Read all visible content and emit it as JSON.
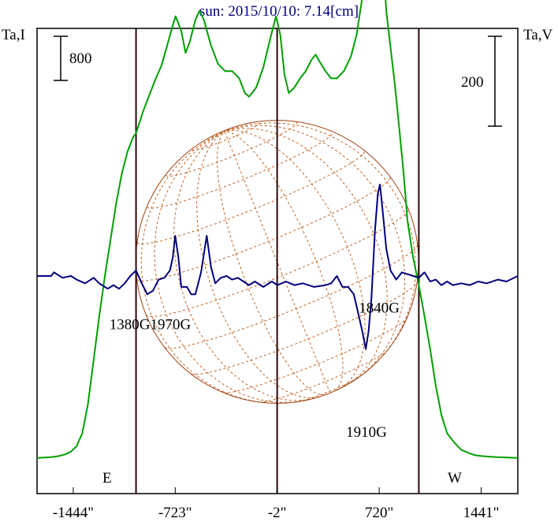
{
  "chart_data": {
    "type": "line",
    "title": "sun: 2015/10/10: 7.14[cm]",
    "y_left_label": "Ta,I",
    "y_right_label": "Ta,V",
    "left_scale_bar": "800",
    "right_scale_bar": "200",
    "limb_east_label": "E",
    "limb_west_label": "W",
    "xlim": [
      -1700,
      1700
    ],
    "x_tick_values": [
      -1444,
      -723,
      -2,
      720,
      1441
    ],
    "x_tick_labels": [
      "-1444\"",
      "-723\"",
      "-2\"",
      "720\"",
      "1441\""
    ],
    "vertical_lines": [
      -1000,
      -2,
      1000
    ],
    "grid": false,
    "solar_disk": {
      "center_arcsec": -2,
      "radius_arcsec": 1000
    },
    "annotations": [
      {
        "text": "1380G1970G",
        "x": -900,
        "y": 0.29
      },
      {
        "text": "1840G",
        "x": 720,
        "y": 0.2
      },
      {
        "text": "1910G",
        "x": 630,
        "y": 0.88
      }
    ],
    "series": [
      {
        "color": "#00a000",
        "points": [
          [
            -1700,
            0.995
          ],
          [
            -1600,
            0.99
          ],
          [
            -1550,
            0.985
          ],
          [
            -1500,
            0.975
          ],
          [
            -1460,
            0.96
          ],
          [
            -1420,
            0.93
          ],
          [
            -1380,
            0.86
          ],
          [
            -1340,
            0.7
          ],
          [
            -1300,
            0.46
          ],
          [
            -1260,
            0.22
          ],
          [
            -1220,
            0.0
          ],
          [
            -1180,
            -0.2
          ],
          [
            -1140,
            -0.4
          ],
          [
            -1100,
            -0.56
          ],
          [
            -1060,
            -0.68
          ],
          [
            -1020,
            -0.76
          ],
          [
            -1000,
            -0.78
          ],
          [
            -950,
            -0.9
          ],
          [
            -900,
            -1.0
          ],
          [
            -860,
            -1.08
          ],
          [
            -820,
            -1.15
          ],
          [
            -780,
            -1.26
          ],
          [
            -740,
            -1.37
          ],
          [
            -720,
            -1.42
          ],
          [
            -680,
            -1.34
          ],
          [
            -650,
            -1.22
          ],
          [
            -620,
            -1.28
          ],
          [
            -580,
            -1.4
          ],
          [
            -550,
            -1.45
          ],
          [
            -520,
            -1.4
          ],
          [
            -470,
            -1.26
          ],
          [
            -420,
            -1.16
          ],
          [
            -370,
            -1.12
          ],
          [
            -320,
            -1.12
          ],
          [
            -270,
            -1.08
          ],
          [
            -230,
            -1.0
          ],
          [
            -200,
            -0.98
          ],
          [
            -150,
            -1.03
          ],
          [
            -100,
            -1.14
          ],
          [
            -50,
            -1.3
          ],
          [
            -10,
            -1.42
          ],
          [
            20,
            -1.32
          ],
          [
            50,
            -1.1
          ],
          [
            80,
            -1.0
          ],
          [
            120,
            -1.03
          ],
          [
            160,
            -1.08
          ],
          [
            200,
            -1.12
          ],
          [
            240,
            -1.18
          ],
          [
            270,
            -1.21
          ],
          [
            300,
            -1.17
          ],
          [
            340,
            -1.12
          ],
          [
            380,
            -1.08
          ],
          [
            420,
            -1.08
          ],
          [
            470,
            -1.12
          ],
          [
            520,
            -1.2
          ],
          [
            560,
            -1.32
          ],
          [
            600,
            -1.52
          ],
          [
            640,
            -1.72
          ],
          [
            680,
            -1.88
          ],
          [
            700,
            -1.98
          ],
          [
            720,
            -2.02
          ],
          [
            745,
            -1.75
          ],
          [
            770,
            -1.45
          ],
          [
            800,
            -1.25
          ],
          [
            830,
            -1.05
          ],
          [
            860,
            -0.82
          ],
          [
            890,
            -0.58
          ],
          [
            920,
            -0.3
          ],
          [
            960,
            -0.1
          ],
          [
            1000,
            0.05
          ],
          [
            1040,
            0.22
          ],
          [
            1080,
            0.4
          ],
          [
            1120,
            0.6
          ],
          [
            1160,
            0.76
          ],
          [
            1200,
            0.86
          ],
          [
            1250,
            0.91
          ],
          [
            1300,
            0.95
          ],
          [
            1360,
            0.97
          ],
          [
            1400,
            0.98
          ],
          [
            1450,
            0.985
          ],
          [
            1550,
            0.99
          ],
          [
            1700,
            0.995
          ]
        ]
      },
      {
        "color": "#000080",
        "points": [
          [
            -1700,
            0.0
          ],
          [
            -1600,
            0.0
          ],
          [
            -1580,
            -0.02
          ],
          [
            -1520,
            0.01
          ],
          [
            -1460,
            0.0
          ],
          [
            -1420,
            0.02
          ],
          [
            -1360,
            0.04
          ],
          [
            -1300,
            0.01
          ],
          [
            -1260,
            0.04
          ],
          [
            -1200,
            0.07
          ],
          [
            -1160,
            0.05
          ],
          [
            -1120,
            0.07
          ],
          [
            -1080,
            0.04
          ],
          [
            -1040,
            0.0
          ],
          [
            -1000,
            -0.03
          ],
          [
            -960,
            0.04
          ],
          [
            -920,
            0.1
          ],
          [
            -880,
            0.08
          ],
          [
            -840,
            0.02
          ],
          [
            -800,
            0.01
          ],
          [
            -760,
            -0.03
          ],
          [
            -740,
            -0.1
          ],
          [
            -723,
            -0.22
          ],
          [
            -700,
            -0.1
          ],
          [
            -680,
            0.06
          ],
          [
            -640,
            0.06
          ],
          [
            -610,
            0.1
          ],
          [
            -580,
            0.1
          ],
          [
            -540,
            -0.02
          ],
          [
            -500,
            -0.22
          ],
          [
            -470,
            -0.05
          ],
          [
            -440,
            0.04
          ],
          [
            -400,
            0.01
          ],
          [
            -360,
            0.0
          ],
          [
            -320,
            0.02
          ],
          [
            -280,
            0.01
          ],
          [
            -240,
            0.03
          ],
          [
            -200,
            0.05
          ],
          [
            -160,
            0.03
          ],
          [
            -100,
            0.06
          ],
          [
            -40,
            0.03
          ],
          [
            0,
            0.05
          ],
          [
            60,
            0.03
          ],
          [
            120,
            0.05
          ],
          [
            180,
            0.04
          ],
          [
            260,
            0.06
          ],
          [
            340,
            0.05
          ],
          [
            380,
            0.04
          ],
          [
            420,
            0.0
          ],
          [
            460,
            0.06
          ],
          [
            500,
            0.06
          ],
          [
            540,
            0.1
          ],
          [
            570,
            0.2
          ],
          [
            600,
            0.3
          ],
          [
            625,
            0.4
          ],
          [
            645,
            0.3
          ],
          [
            665,
            0.12
          ],
          [
            690,
            -0.25
          ],
          [
            710,
            -0.45
          ],
          [
            725,
            -0.5
          ],
          [
            745,
            -0.35
          ],
          [
            770,
            -0.15
          ],
          [
            800,
            -0.03
          ],
          [
            840,
            0.02
          ],
          [
            880,
            -0.02
          ],
          [
            920,
            -0.01
          ],
          [
            960,
            0.0
          ],
          [
            1000,
            0.01
          ],
          [
            1040,
            -0.02
          ],
          [
            1080,
            0.03
          ],
          [
            1120,
            0.02
          ],
          [
            1160,
            0.05
          ],
          [
            1200,
            0.03
          ],
          [
            1240,
            0.05
          ],
          [
            1300,
            0.04
          ],
          [
            1360,
            0.05
          ],
          [
            1420,
            0.03
          ],
          [
            1480,
            0.04
          ],
          [
            1560,
            0.02
          ],
          [
            1620,
            0.03
          ],
          [
            1700,
            0.0
          ]
        ]
      }
    ]
  }
}
